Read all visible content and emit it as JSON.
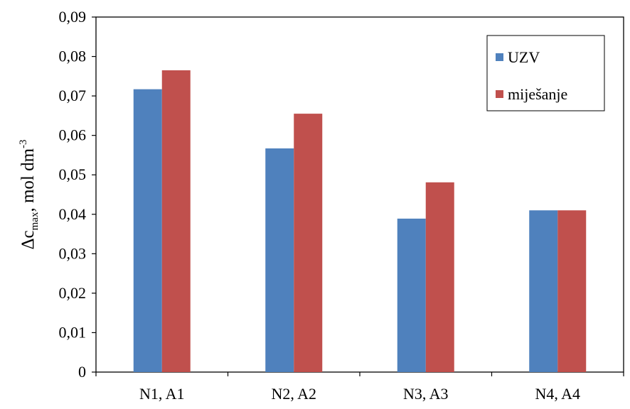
{
  "chart_data": {
    "type": "bar",
    "categories": [
      "N1, A1",
      "N2, A2",
      "N3, A3",
      "N4, A4"
    ],
    "series": [
      {
        "name": "UZV",
        "values": [
          0.0717,
          0.0567,
          0.0389,
          0.041
        ],
        "color": "#4F81BD"
      },
      {
        "name": "miješanje",
        "values": [
          0.0765,
          0.0655,
          0.0481,
          0.041
        ],
        "color": "#C0504D"
      }
    ],
    "ylabel": {
      "main": "Δc",
      "sub": "max",
      "rest": ", mol dm",
      "sup": "-3"
    },
    "ylim": [
      0,
      0.09
    ],
    "yticks": [
      "0",
      "0,01",
      "0,02",
      "0,03",
      "0,04",
      "0,05",
      "0,06",
      "0,07",
      "0,08",
      "0,09"
    ],
    "grid": false,
    "legend_position": "top-right"
  }
}
